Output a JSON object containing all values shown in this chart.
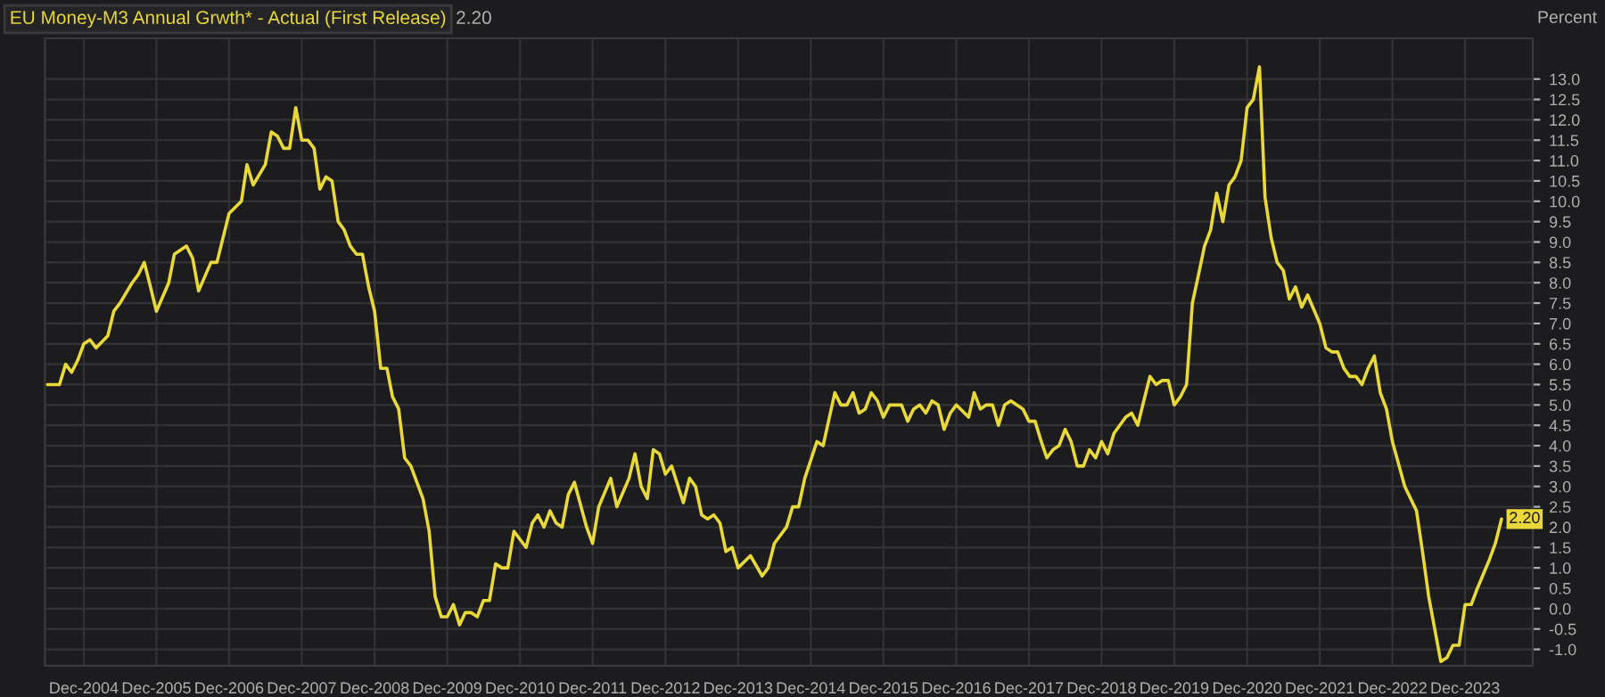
{
  "chart_data": {
    "type": "line",
    "ylabel": "Percent",
    "annotations": [
      "2.20",
      {
        "text": "2.20",
        "x": "2024-06",
        "y": 2.2
      }
    ],
    "x": [
      "2004-06",
      "2004-08",
      "2004-09",
      "2004-10",
      "2004-11",
      "2004-12",
      "2005-01",
      "2005-02",
      "2005-04",
      "2005-05",
      "2005-06",
      "2005-08",
      "2005-09",
      "2005-10",
      "2005-11",
      "2005-12",
      "2006-02",
      "2006-03",
      "2006-05",
      "2006-06",
      "2006-07",
      "2006-09",
      "2006-10",
      "2006-12",
      "2007-02",
      "2007-03",
      "2007-04",
      "2007-06",
      "2007-07",
      "2007-08",
      "2007-09",
      "2007-10",
      "2007-11",
      "2007-12",
      "2008-01",
      "2008-02",
      "2008-03",
      "2008-04",
      "2008-05",
      "2008-06",
      "2008-07",
      "2008-08",
      "2008-09",
      "2008-10",
      "2008-11",
      "2008-12",
      "2009-01",
      "2009-02",
      "2009-03",
      "2009-04",
      "2009-05",
      "2009-06",
      "2009-08",
      "2009-09",
      "2009-10",
      "2009-11",
      "2009-12",
      "2010-01",
      "2010-02",
      "2010-03",
      "2010-04",
      "2010-05",
      "2010-06",
      "2010-07",
      "2010-08",
      "2010-09",
      "2010-10",
      "2010-11",
      "2011-01",
      "2011-02",
      "2011-03",
      "2011-04",
      "2011-05",
      "2011-06",
      "2011-07",
      "2011-08",
      "2011-09",
      "2011-11",
      "2011-12",
      "2012-01",
      "2012-03",
      "2012-04",
      "2012-06",
      "2012-07",
      "2012-08",
      "2012-09",
      "2012-10",
      "2012-11",
      "2012-12",
      "2013-01",
      "2013-03",
      "2013-04",
      "2013-05",
      "2013-06",
      "2013-07",
      "2013-08",
      "2013-09",
      "2013-10",
      "2013-11",
      "2013-12",
      "2014-02",
      "2014-04",
      "2014-05",
      "2014-06",
      "2014-08",
      "2014-09",
      "2014-10",
      "2014-11",
      "2015-01",
      "2015-02",
      "2015-04",
      "2015-05",
      "2015-06",
      "2015-07",
      "2015-08",
      "2015-09",
      "2015-10",
      "2015-11",
      "2015-12",
      "2016-01",
      "2016-03",
      "2016-04",
      "2016-05",
      "2016-06",
      "2016-07",
      "2016-08",
      "2016-09",
      "2016-10",
      "2016-11",
      "2016-12",
      "2017-02",
      "2017-03",
      "2017-04",
      "2017-05",
      "2017-06",
      "2017-07",
      "2017-08",
      "2017-09",
      "2017-11",
      "2017-12",
      "2018-01",
      "2018-02",
      "2018-03",
      "2018-04",
      "2018-05",
      "2018-06",
      "2018-07",
      "2018-08",
      "2018-09",
      "2018-10",
      "2018-11",
      "2018-12",
      "2019-01",
      "2019-02",
      "2019-04",
      "2019-05",
      "2019-06",
      "2019-07",
      "2019-08",
      "2019-09",
      "2019-10",
      "2019-11",
      "2019-12",
      "2020-01",
      "2020-02",
      "2020-03",
      "2020-04",
      "2020-05",
      "2020-06",
      "2020-07",
      "2020-08",
      "2020-09",
      "2020-10",
      "2020-11",
      "2020-12",
      "2021-01",
      "2021-02",
      "2021-03",
      "2021-04",
      "2021-05",
      "2021-06",
      "2021-07",
      "2021-08",
      "2021-09",
      "2021-10",
      "2021-12",
      "2022-01",
      "2022-02",
      "2022-03",
      "2022-04",
      "2022-05",
      "2022-06",
      "2022-07",
      "2022-08",
      "2022-09",
      "2022-10",
      "2022-11",
      "2022-12",
      "2023-02",
      "2023-04",
      "2023-05",
      "2023-06",
      "2023-08",
      "2023-09",
      "2023-10",
      "2023-11",
      "2023-12",
      "2024-01",
      "2024-02",
      "2024-04",
      "2024-05",
      "2024-06"
    ],
    "series": [
      {
        "name": "EU Money-M3 Annual Grwth* - Actual (First Release)",
        "color": "#e8d83a",
        "values": [
          5.5,
          5.5,
          6.0,
          5.8,
          6.1,
          6.5,
          6.6,
          6.4,
          6.7,
          7.3,
          7.5,
          8.0,
          8.2,
          8.5,
          7.9,
          7.3,
          8.0,
          8.7,
          8.9,
          8.6,
          7.8,
          8.5,
          8.5,
          9.7,
          10.0,
          10.9,
          10.4,
          10.9,
          11.7,
          11.6,
          11.3,
          11.3,
          12.3,
          11.5,
          11.5,
          11.3,
          10.3,
          10.6,
          10.5,
          9.5,
          9.3,
          8.9,
          8.7,
          8.7,
          7.9,
          7.3,
          5.9,
          5.9,
          5.2,
          4.9,
          3.7,
          3.5,
          2.7,
          1.9,
          0.3,
          -0.2,
          -0.2,
          0.1,
          -0.4,
          -0.1,
          -0.1,
          -0.2,
          0.2,
          0.2,
          1.1,
          1.0,
          1.0,
          1.9,
          1.5,
          2.1,
          2.3,
          2.0,
          2.4,
          2.1,
          2.0,
          2.8,
          3.1,
          2.0,
          1.6,
          2.5,
          3.2,
          2.5,
          3.2,
          3.8,
          3.0,
          2.7,
          3.9,
          3.8,
          3.3,
          3.5,
          2.6,
          3.2,
          3.0,
          2.3,
          2.2,
          2.3,
          2.1,
          1.4,
          1.5,
          1.0,
          1.3,
          0.8,
          1.0,
          1.6,
          2.0,
          2.5,
          2.5,
          3.2,
          4.1,
          4.0,
          5.3,
          5.0,
          5.0,
          5.3,
          4.8,
          4.9,
          5.3,
          5.1,
          4.7,
          5.0,
          5.0,
          4.6,
          4.9,
          5.0,
          4.8,
          5.1,
          5.0,
          4.4,
          4.8,
          5.0,
          4.7,
          5.3,
          4.9,
          5.0,
          5.0,
          4.5,
          5.0,
          5.1,
          4.9,
          4.6,
          4.6,
          4.1,
          3.7,
          3.9,
          4.0,
          4.4,
          4.1,
          3.5,
          3.5,
          3.9,
          3.7,
          4.1,
          3.8,
          4.3,
          4.7,
          4.8,
          4.5,
          5.1,
          5.7,
          5.5,
          5.6,
          5.6,
          5.0,
          5.2,
          5.5,
          7.5,
          8.2,
          8.9,
          9.3,
          10.2,
          9.5,
          10.4,
          10.6,
          11.0,
          12.3,
          12.5,
          13.3,
          10.1,
          9.1,
          8.5,
          8.3,
          7.6,
          7.9,
          7.4,
          7.7,
          7.0,
          6.4,
          6.3,
          6.3,
          5.9,
          5.7,
          5.7,
          5.5,
          5.9,
          6.2,
          5.3,
          4.9,
          4.1,
          3.0,
          2.4,
          1.4,
          0.3,
          -1.3,
          -1.2,
          -0.9,
          -0.9,
          0.1,
          0.1,
          0.5,
          1.2,
          1.6,
          2.2
        ]
      }
    ],
    "xlim": [
      "2004-05-20",
      "2024-11-05"
    ],
    "xticks": [
      {
        "value": "2004-12",
        "label": "Dec-2004"
      },
      {
        "value": "2005-12",
        "label": "Dec-2005"
      },
      {
        "value": "2006-12",
        "label": "Dec-2006"
      },
      {
        "value": "2007-12",
        "label": "Dec-2007"
      },
      {
        "value": "2008-12",
        "label": "Dec-2008"
      },
      {
        "value": "2009-12",
        "label": "Dec-2009"
      },
      {
        "value": "2010-12",
        "label": "Dec-2010"
      },
      {
        "value": "2011-12",
        "label": "Dec-2011"
      },
      {
        "value": "2012-12",
        "label": "Dec-2012"
      },
      {
        "value": "2013-12",
        "label": "Dec-2013"
      },
      {
        "value": "2014-12",
        "label": "Dec-2014"
      },
      {
        "value": "2015-12",
        "label": "Dec-2015"
      },
      {
        "value": "2016-12",
        "label": "Dec-2016"
      },
      {
        "value": "2017-12",
        "label": "Dec-2017"
      },
      {
        "value": "2018-12",
        "label": "Dec-2018"
      },
      {
        "value": "2019-12",
        "label": "Dec-2019"
      },
      {
        "value": "2020-12",
        "label": "Dec-2020"
      },
      {
        "value": "2021-12",
        "label": "Dec-2021"
      },
      {
        "value": "2022-12",
        "label": "Dec-2022"
      },
      {
        "value": "2023-12",
        "label": "Dec-2023"
      }
    ],
    "ylim": [
      -1.4,
      14.0
    ],
    "yticks": [
      {
        "value": -1.0,
        "label": "-1.0"
      },
      {
        "value": -0.5,
        "label": "-0.5"
      },
      {
        "value": 0.0,
        "label": "0.0"
      },
      {
        "value": 0.5,
        "label": "0.5"
      },
      {
        "value": 1.0,
        "label": "1.0"
      },
      {
        "value": 1.5,
        "label": "1.5"
      },
      {
        "value": 2.0,
        "label": "2.0"
      },
      {
        "value": 2.5,
        "label": "2.5"
      },
      {
        "value": 3.0,
        "label": "3.0"
      },
      {
        "value": 3.5,
        "label": "3.5"
      },
      {
        "value": 4.0,
        "label": "4.0"
      },
      {
        "value": 4.5,
        "label": "4.5"
      },
      {
        "value": 5.0,
        "label": "5.0"
      },
      {
        "value": 5.5,
        "label": "5.5"
      },
      {
        "value": 6.0,
        "label": "6.0"
      },
      {
        "value": 6.5,
        "label": "6.5"
      },
      {
        "value": 7.0,
        "label": "7.0"
      },
      {
        "value": 7.5,
        "label": "7.5"
      },
      {
        "value": 8.0,
        "label": "8.0"
      },
      {
        "value": 8.5,
        "label": "8.5"
      },
      {
        "value": 9.0,
        "label": "9.0"
      },
      {
        "value": 9.5,
        "label": "9.5"
      },
      {
        "value": 10.0,
        "label": "10.0"
      },
      {
        "value": 10.5,
        "label": "10.5"
      },
      {
        "value": 11.0,
        "label": "11.0"
      },
      {
        "value": 11.5,
        "label": "11.5"
      },
      {
        "value": 12.0,
        "label": "12.0"
      },
      {
        "value": 12.5,
        "label": "12.5"
      },
      {
        "value": 13.0,
        "label": "13.0"
      }
    ],
    "grid": true,
    "marker": "none",
    "line_style": "solid"
  }
}
